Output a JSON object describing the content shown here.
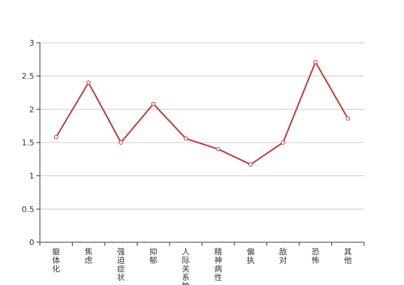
{
  "chart_data": {
    "type": "line",
    "title": "",
    "xlabel": "",
    "ylabel": "",
    "categories": [
      "躯体化",
      "焦虑",
      "强迫症状",
      "抑郁",
      "人际关系敏感",
      "精神病性",
      "偏执",
      "敌对",
      "恐怖",
      "其他"
    ],
    "series": [
      {
        "values": [
          1.58,
          2.4,
          1.5,
          2.08,
          1.56,
          1.4,
          1.17,
          1.5,
          2.71,
          1.86
        ]
      }
    ],
    "ylim": [
      0,
      3
    ],
    "yticks": [
      "0",
      "0.5",
      "1",
      "1.5",
      "2",
      "2.5",
      "3"
    ],
    "grid": true,
    "colors": {
      "line": "#c23531",
      "grid": "#cccccc",
      "axis": "#333333",
      "marker_fill": "#ffffff"
    }
  }
}
